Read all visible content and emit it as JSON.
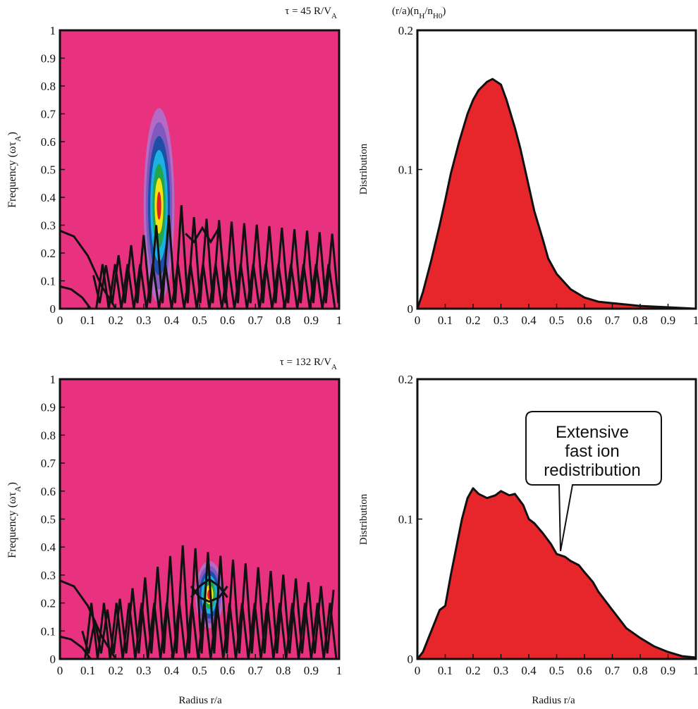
{
  "figure": {
    "top_left_title": "τ = 45 R/V",
    "top_left_title_sub": "A",
    "top_right_title": "(r/a)(n",
    "top_right_title_sub1": "H",
    "top_right_title_mid": "/n",
    "top_right_title_sub2": "H0",
    "top_right_title_end": ")",
    "bottom_left_title": "τ = 132 R/V",
    "bottom_left_title_sub": "A",
    "left_ylabel_main": "Frequency (ωτ",
    "left_ylabel_sub": "A",
    "left_ylabel_end": ")",
    "right_ylabel": "Distribution",
    "xlabel": "Radius r/a",
    "callout_lines": [
      "Extensive",
      "fast ion",
      "redistribution"
    ],
    "colors": {
      "background_magenta": "#e8327f",
      "distribution_fill": "#e7262b",
      "line": "#111111",
      "contour_levels": [
        "#b46bc5",
        "#7f59bd",
        "#1d4fa8",
        "#1bb1e5",
        "#22a64b",
        "#f2e314",
        "#e21f26"
      ]
    }
  },
  "chart_data": [
    {
      "type": "heatmap",
      "panel": "top-left",
      "title": "τ = 45 R/V_A",
      "xlabel": "",
      "ylabel": "Frequency (ωτ_A)",
      "xlim": [
        0,
        1
      ],
      "ylim": [
        0,
        1
      ],
      "xticks": [
        "0",
        "0.1",
        "0.2",
        "0.3",
        "0.4",
        "0.5",
        "0.6",
        "0.7",
        "0.8",
        "0.9",
        "1"
      ],
      "yticks": [
        "0",
        "0.1",
        "0.2",
        "0.3",
        "0.4",
        "0.5",
        "0.6",
        "0.7",
        "0.8",
        "0.9",
        "1"
      ],
      "mode_peak": {
        "r": 0.355,
        "freq": 0.37,
        "r_halfwidth": 0.055,
        "freq_halfwidth": 0.35
      },
      "continuum_curves": [
        {
          "r": [
            0.0,
            0.05,
            0.1,
            0.15,
            0.2
          ],
          "freq": [
            0.28,
            0.26,
            0.19,
            0.08,
            0.0
          ]
        },
        {
          "r": [
            0.0,
            0.04,
            0.08,
            0.11
          ],
          "freq": [
            0.08,
            0.07,
            0.04,
            0.0
          ]
        },
        {
          "r": [
            0.45,
            0.48,
            0.51,
            0.54,
            0.57,
            0.6
          ],
          "freq": [
            0.27,
            0.24,
            0.29,
            0.24,
            0.29,
            0.0
          ]
        }
      ]
    },
    {
      "type": "area",
      "panel": "top-right",
      "title": "(r/a)(n_H/n_H0)",
      "xlabel": "",
      "ylabel": "Distribution",
      "xlim": [
        0,
        1
      ],
      "ylim": [
        0,
        0.2
      ],
      "xticks": [
        "0",
        "0.1",
        "0.2",
        "0.3",
        "0.4",
        "0.5",
        "0.6",
        "0.7",
        "0.8",
        "0.9",
        "1"
      ],
      "yticks": [
        "0",
        "0.1",
        "0.2"
      ],
      "x": [
        0,
        0.02,
        0.05,
        0.08,
        0.1,
        0.12,
        0.15,
        0.18,
        0.2,
        0.22,
        0.25,
        0.27,
        0.3,
        0.32,
        0.35,
        0.37,
        0.4,
        0.42,
        0.45,
        0.47,
        0.5,
        0.55,
        0.6,
        0.65,
        0.7,
        0.8,
        0.9,
        1.0
      ],
      "y": [
        0.0,
        0.012,
        0.035,
        0.06,
        0.078,
        0.097,
        0.12,
        0.14,
        0.15,
        0.157,
        0.163,
        0.165,
        0.161,
        0.15,
        0.13,
        0.115,
        0.088,
        0.07,
        0.05,
        0.036,
        0.025,
        0.014,
        0.008,
        0.005,
        0.004,
        0.002,
        0.001,
        0.0
      ]
    },
    {
      "type": "heatmap",
      "panel": "bottom-left",
      "title": "τ = 132 R/V_A",
      "xlabel": "Radius r/a",
      "ylabel": "Frequency (ωτ_A)",
      "xlim": [
        0,
        1
      ],
      "ylim": [
        0,
        1
      ],
      "xticks": [
        "0",
        "0.1",
        "0.2",
        "0.3",
        "0.4",
        "0.5",
        "0.6",
        "0.7",
        "0.8",
        "0.9",
        "1"
      ],
      "yticks": [
        "0",
        "0.1",
        "0.2",
        "0.3",
        "0.4",
        "0.5",
        "0.6",
        "0.7",
        "0.8",
        "0.9",
        "1"
      ],
      "mode_peak": {
        "r": 0.535,
        "freq": 0.23,
        "r_halfwidth": 0.05,
        "freq_halfwidth": 0.12
      },
      "continuum_curves": [
        {
          "r": [
            0.0,
            0.05,
            0.1,
            0.15,
            0.2
          ],
          "freq": [
            0.28,
            0.26,
            0.19,
            0.08,
            0.0
          ]
        },
        {
          "r": [
            0.0,
            0.04,
            0.08,
            0.11
          ],
          "freq": [
            0.08,
            0.07,
            0.04,
            0.0
          ]
        },
        {
          "r": [
            0.47,
            0.5,
            0.535,
            0.57,
            0.6
          ],
          "freq": [
            0.22,
            0.26,
            0.285,
            0.26,
            0.22
          ]
        },
        {
          "r": [
            0.47,
            0.5,
            0.535,
            0.57,
            0.6
          ],
          "freq": [
            0.26,
            0.22,
            0.205,
            0.22,
            0.26
          ]
        }
      ]
    },
    {
      "type": "area",
      "panel": "bottom-right",
      "title": "",
      "xlabel": "Radius r/a",
      "ylabel": "Distribution",
      "xlim": [
        0,
        1
      ],
      "ylim": [
        0,
        0.2
      ],
      "xticks": [
        "0",
        "0.1",
        "0.2",
        "0.3",
        "0.4",
        "0.5",
        "0.6",
        "0.7",
        "0.8",
        "0.9",
        "1"
      ],
      "yticks": [
        "0",
        "0.1",
        "0.2"
      ],
      "x": [
        0,
        0.02,
        0.04,
        0.06,
        0.08,
        0.1,
        0.12,
        0.14,
        0.16,
        0.18,
        0.2,
        0.22,
        0.25,
        0.28,
        0.3,
        0.33,
        0.35,
        0.38,
        0.4,
        0.42,
        0.45,
        0.48,
        0.5,
        0.53,
        0.55,
        0.58,
        0.6,
        0.63,
        0.65,
        0.7,
        0.75,
        0.8,
        0.85,
        0.9,
        0.95,
        1.0
      ],
      "y": [
        0.0,
        0.005,
        0.015,
        0.025,
        0.035,
        0.038,
        0.06,
        0.08,
        0.1,
        0.115,
        0.122,
        0.118,
        0.115,
        0.117,
        0.12,
        0.117,
        0.118,
        0.11,
        0.1,
        0.097,
        0.09,
        0.082,
        0.075,
        0.073,
        0.07,
        0.067,
        0.062,
        0.055,
        0.048,
        0.035,
        0.022,
        0.015,
        0.009,
        0.005,
        0.002,
        0.001
      ]
    }
  ]
}
